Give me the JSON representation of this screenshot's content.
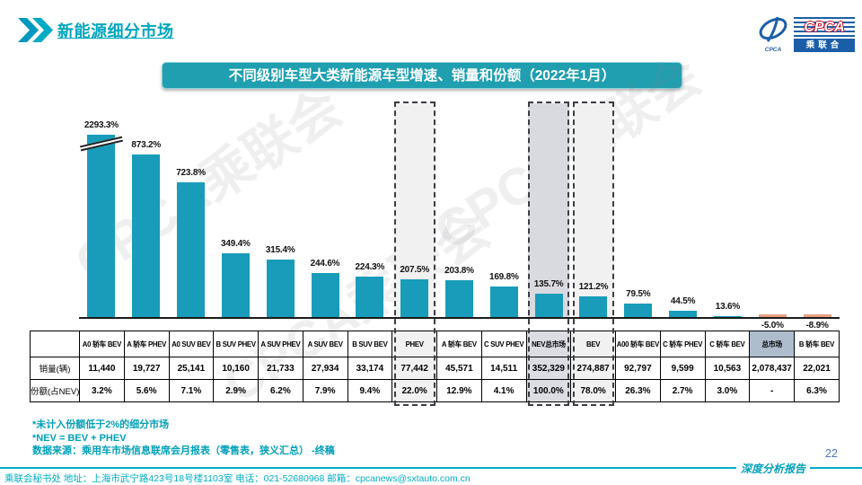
{
  "header": {
    "title": "新能源细分市场",
    "logo": {
      "cpca": "CPCA",
      "sub": "乘联合",
      "emblem_caption": "CPCA"
    }
  },
  "chart": {
    "banner_title": "不同级别车型大类新能源车型增速、销量和份额（2022年1月）",
    "watermark_text": "CPCA乘联会",
    "colors": {
      "bar": "#189CBA",
      "negative_bar": "#E9A085",
      "banner_bg": "#1F9FB0",
      "accent_cyan": "#00A5BF",
      "nev_column_fill": "#D9D9E0",
      "highlight_column_fill": "#F1F1F1",
      "market_header_fill": "#AEBDCD"
    }
  },
  "chart_data": {
    "type": "bar",
    "title": "不同级别车型大类新能源车型增速、销量和份额（2022年1月）",
    "categories": [
      "A0 轿车 BEV",
      "A 轿车 PHEV",
      "A0 SUV BEV",
      "B SUV PHEV",
      "A SUV PHEV",
      "A SUV BEV",
      "B SUV BEV",
      "PHEV",
      "A 轿车 BEV",
      "C SUV PHEV",
      "NEV总市场",
      "BEV",
      "A00 轿车 BEV",
      "C 轿车 PHEV",
      "C 轿车 BEV",
      "总市场",
      "B 轿车 BEV"
    ],
    "series": [
      {
        "name": "增速(%)",
        "values": [
          2293.3,
          873.2,
          723.8,
          349.4,
          315.4,
          244.6,
          224.3,
          207.5,
          203.8,
          169.8,
          135.7,
          121.2,
          79.5,
          44.5,
          13.6,
          -5.0,
          -8.9
        ]
      }
    ],
    "table_rows": [
      {
        "label": "销量(辆)",
        "values": [
          "11,440",
          "19,727",
          "25,141",
          "10,160",
          "21,733",
          "27,934",
          "33,174",
          "77,442",
          "45,571",
          "14,511",
          "352,329",
          "274,887",
          "92,797",
          "9,599",
          "10,563",
          "2,078,437",
          "22,021"
        ]
      },
      {
        "label": "份额(占NEV)",
        "values": [
          "3.2%",
          "5.6%",
          "7.1%",
          "2.9%",
          "6.2%",
          "7.9%",
          "9.4%",
          "22.0%",
          "12.9%",
          "4.1%",
          "100.0%",
          "78.0%",
          "26.3%",
          "2.7%",
          "3.0%",
          "-",
          "6.3%"
        ]
      }
    ],
    "highlight_dashed_columns": [
      7,
      10,
      11
    ],
    "shaded_gray_column": 10,
    "market_shaded_header_column": 15,
    "axis_break_column": 0,
    "ylim": [
      -50,
      1000
    ],
    "xlabel": "",
    "ylabel": ""
  },
  "footnotes": [
    "*未计入份额低于2%的细分市场",
    "*NEV = BEV + PHEV",
    "数据来源：乘用车市场信息联席会月报表（零售表，狭义汇总） -终稿"
  ],
  "footer": {
    "left": "乘联会秘书处  地址：上海市武宁路423号18号楼1103室 电话：021-52680968  邮箱：cpcanews@sxtauto.com.cn",
    "report_label": "深度分析报告",
    "page_number": "22"
  }
}
